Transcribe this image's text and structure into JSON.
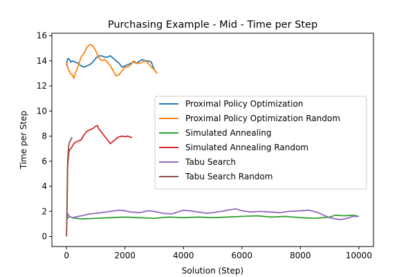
{
  "chart_data": {
    "type": "line",
    "title": "Purchasing Example - Mid - Time per Step",
    "xlabel": "Solution (Step)",
    "ylabel": "Time per Step",
    "xlim": [
      -500,
      10500
    ],
    "ylim": [
      -0.8,
      16.2
    ],
    "xticks": [
      0,
      2000,
      4000,
      6000,
      8000,
      10000
    ],
    "yticks": [
      0,
      2,
      4,
      6,
      8,
      10,
      12,
      14,
      16
    ],
    "grid": false,
    "legend_position": "center-right",
    "series": [
      {
        "name": "Proximal Policy Optimization",
        "color": "#1f77b4",
        "x": [
          0,
          30,
          60,
          100,
          150,
          200,
          300,
          400,
          500,
          600,
          700,
          800,
          900,
          1000,
          1100,
          1200,
          1300,
          1400,
          1500,
          1600,
          1700,
          1800,
          1900,
          2000,
          2100,
          2200,
          2300,
          2400,
          2500,
          2600,
          2700,
          2800,
          2900,
          3000,
          3100
        ],
        "y": [
          13.6,
          14.1,
          14.2,
          14.1,
          13.9,
          14.0,
          13.9,
          13.8,
          13.6,
          13.5,
          13.6,
          13.7,
          13.9,
          14.2,
          14.4,
          14.4,
          14.3,
          14.3,
          14.4,
          14.2,
          14.0,
          13.8,
          13.5,
          13.6,
          13.7,
          13.8,
          13.9,
          13.8,
          14.0,
          14.1,
          14.0,
          14.0,
          13.9,
          13.3,
          13.0
        ]
      },
      {
        "name": "Proximal Policy Optimization Random",
        "color": "#ff7f0e",
        "x": [
          0,
          40,
          80,
          120,
          160,
          200,
          250,
          300,
          400,
          500,
          600,
          700,
          800,
          900,
          1000,
          1100,
          1200,
          1300,
          1400,
          1500,
          1600,
          1700,
          1800,
          1900,
          2000,
          2100,
          2200,
          2300,
          2400,
          2500,
          2600,
          2700,
          2800,
          2900,
          3000,
          3100
        ],
        "y": [
          13.9,
          13.5,
          13.2,
          13.1,
          12.9,
          12.9,
          12.6,
          13.0,
          13.6,
          14.3,
          14.6,
          15.1,
          15.3,
          15.2,
          14.8,
          14.3,
          14.0,
          14.1,
          13.9,
          13.6,
          13.2,
          12.8,
          12.9,
          13.2,
          13.5,
          13.5,
          13.7,
          14.0,
          13.8,
          13.8,
          13.9,
          14.0,
          13.8,
          13.5,
          13.3,
          13.0
        ]
      },
      {
        "name": "Simulated Annealing",
        "color": "#2ca02c",
        "x": [
          0,
          50,
          100,
          200,
          500,
          1000,
          1500,
          2000,
          2500,
          3000,
          3500,
          4000,
          4500,
          5000,
          5500,
          6000,
          6500,
          7000,
          7500,
          8000,
          8500,
          9000,
          9200,
          9500,
          9800,
          10000
        ],
        "y": [
          1.3,
          1.5,
          1.6,
          1.5,
          1.4,
          1.45,
          1.5,
          1.55,
          1.5,
          1.45,
          1.55,
          1.5,
          1.55,
          1.5,
          1.55,
          1.6,
          1.65,
          1.55,
          1.6,
          1.5,
          1.45,
          1.55,
          1.7,
          1.65,
          1.7,
          1.6
        ]
      },
      {
        "name": "Simulated Annealing Random",
        "color": "#d62728",
        "x": [
          0,
          20,
          40,
          60,
          80,
          100,
          150,
          200,
          250,
          300,
          400,
          500,
          600,
          700,
          800,
          900,
          1000,
          1050,
          1100,
          1200,
          1300,
          1400,
          1500,
          1600,
          1700,
          1800,
          1900,
          2000,
          2100,
          2200,
          2250
        ],
        "y": [
          0.1,
          2.5,
          5.5,
          6.2,
          6.7,
          6.9,
          7.0,
          7.2,
          7.4,
          7.5,
          7.6,
          7.7,
          8.1,
          8.4,
          8.5,
          8.6,
          8.8,
          8.85,
          8.6,
          8.3,
          8.0,
          7.7,
          7.4,
          7.6,
          7.8,
          7.95,
          8.0,
          7.95,
          8.0,
          7.9,
          7.9
        ]
      },
      {
        "name": "Tabu Search",
        "color": "#9467bd",
        "x": [
          0,
          50,
          100,
          200,
          400,
          600,
          800,
          1000,
          1200,
          1500,
          1800,
          2000,
          2200,
          2500,
          2800,
          3000,
          3300,
          3600,
          3800,
          4000,
          4200,
          4500,
          4800,
          5000,
          5300,
          5500,
          5800,
          6000,
          6300,
          6600,
          7000,
          7300,
          7600,
          8000,
          8300,
          8600,
          8800,
          9000,
          9200,
          9400,
          9600,
          9800,
          10000
        ],
        "y": [
          1.6,
          1.8,
          1.6,
          1.5,
          1.6,
          1.7,
          1.8,
          1.85,
          1.9,
          2.0,
          2.1,
          2.05,
          1.95,
          1.9,
          2.05,
          2.0,
          1.85,
          1.8,
          1.95,
          2.1,
          2.05,
          1.95,
          1.85,
          1.9,
          2.0,
          2.1,
          2.2,
          2.05,
          1.95,
          2.0,
          1.95,
          1.9,
          2.0,
          2.05,
          2.1,
          1.9,
          1.7,
          1.5,
          1.4,
          1.35,
          1.45,
          1.6,
          1.6
        ]
      },
      {
        "name": "Tabu Search Random",
        "color": "#8c564b",
        "x": [
          0,
          10,
          20,
          30,
          40,
          60,
          80,
          100,
          130,
          160,
          200
        ],
        "y": [
          0.0,
          1.0,
          3.0,
          5.0,
          6.0,
          6.8,
          7.3,
          7.5,
          7.6,
          7.8,
          7.9
        ]
      }
    ]
  }
}
